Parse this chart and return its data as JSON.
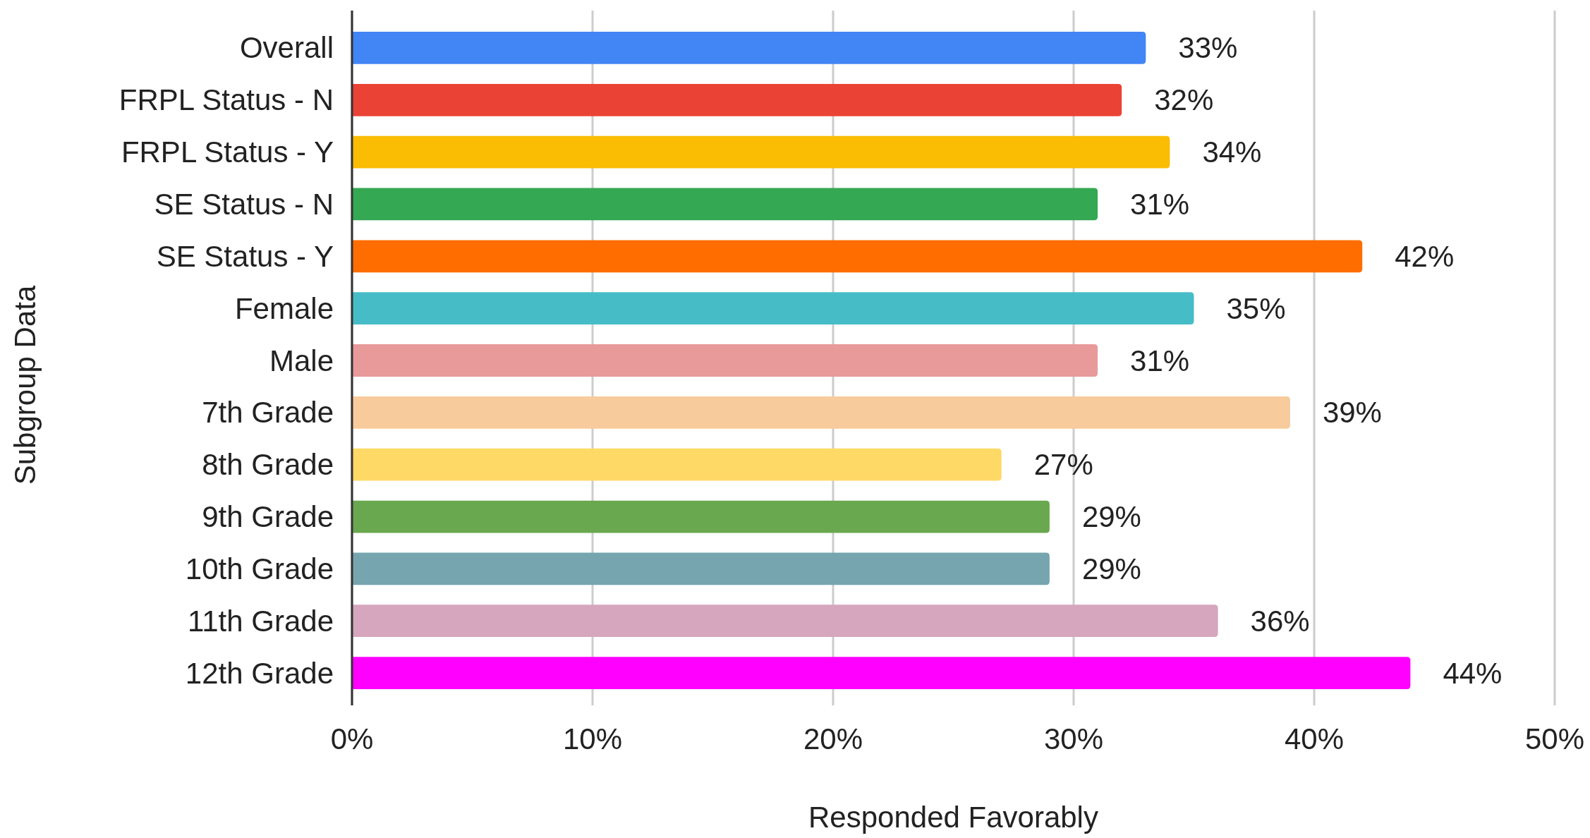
{
  "chart_data": {
    "type": "bar",
    "orientation": "horizontal",
    "xlabel": "Responded Favorably",
    "ylabel": "Subgroup Data",
    "categories": [
      "Overall",
      "FRPL Status - N",
      "FRPL Status - Y",
      "SE Status - N",
      "SE Status - Y",
      "Female",
      "Male",
      "7th Grade",
      "8th Grade",
      "9th Grade",
      "10th Grade",
      "11th Grade",
      "12th Grade"
    ],
    "values": [
      33,
      32,
      34,
      31,
      42,
      35,
      31,
      39,
      27,
      29,
      29,
      36,
      44
    ],
    "colors": [
      "#4285f4",
      "#ea4335",
      "#fbbc04",
      "#34a853",
      "#ff6d01",
      "#46bdc6",
      "#e8999a",
      "#f8cb9c",
      "#ffd966",
      "#6aa84f",
      "#76a5af",
      "#d5a6bd",
      "#ff00ff"
    ],
    "value_labels": [
      "33%",
      "32%",
      "34%",
      "31%",
      "42%",
      "35%",
      "31%",
      "39%",
      "27%",
      "29%",
      "29%",
      "36%",
      "44%"
    ],
    "xlim": [
      0,
      50
    ],
    "xticks": [
      {
        "value": 0,
        "label": "0%"
      },
      {
        "value": 10,
        "label": "10%"
      },
      {
        "value": 20,
        "label": "20%"
      },
      {
        "value": 30,
        "label": "30%"
      },
      {
        "value": 40,
        "label": "40%"
      },
      {
        "value": 50,
        "label": "50%"
      }
    ],
    "grid": "x"
  }
}
